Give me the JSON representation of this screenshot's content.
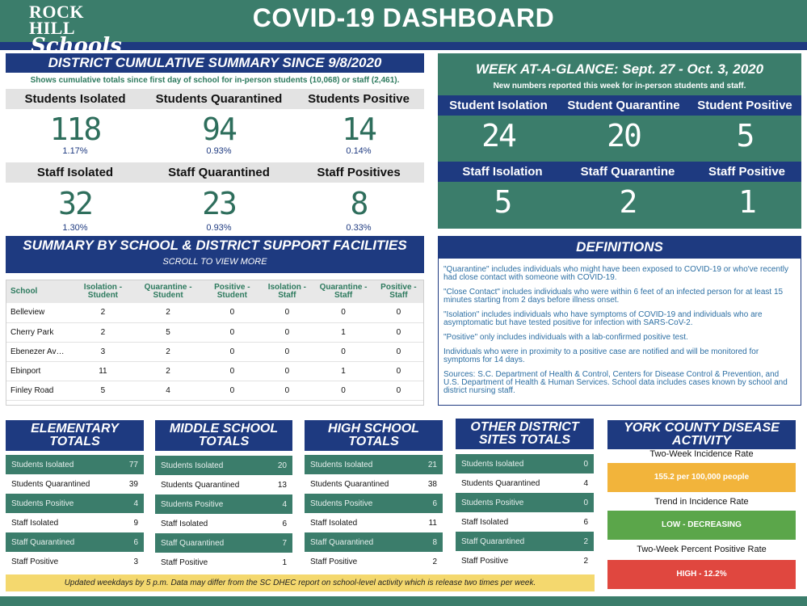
{
  "logo": {
    "line1": "ROCK HILL",
    "line2": "Schools"
  },
  "title": "COVID-19 DASHBOARD",
  "cumulative": {
    "title": "DISTRICT CUMULATIVE SUMMARY SINCE 9/8/2020",
    "subtitle": "Shows cumulative totals since first day of school for in-person students (10,068) or staff (2,461).",
    "students": [
      {
        "label": "Students Isolated",
        "value": "118",
        "pct": "1.17%"
      },
      {
        "label": "Students Quarantined",
        "value": "94",
        "pct": "0.93%"
      },
      {
        "label": "Students Positive",
        "value": "14",
        "pct": "0.14%"
      }
    ],
    "staff": [
      {
        "label": "Staff Isolated",
        "value": "32",
        "pct": "1.30%"
      },
      {
        "label": "Staff Quarantined",
        "value": "23",
        "pct": "0.93%"
      },
      {
        "label": "Staff Positives",
        "value": "8",
        "pct": "0.33%"
      }
    ]
  },
  "week": {
    "title": "WEEK AT-A-GLANCE: Sept. 27 - Oct. 3, 2020",
    "subtitle": "New numbers reported this week for in-person students and staff.",
    "students": [
      {
        "label": "Student Isolation",
        "value": "24"
      },
      {
        "label": "Student Quarantine",
        "value": "20"
      },
      {
        "label": "Student Positive",
        "value": "5"
      }
    ],
    "staff": [
      {
        "label": "Staff Isolation",
        "value": "5"
      },
      {
        "label": "Staff Quarantine",
        "value": "2"
      },
      {
        "label": "Staff Positive",
        "value": "1"
      }
    ]
  },
  "summary": {
    "title": "SUMMARY BY SCHOOL & DISTRICT SUPPORT FACILITIES",
    "subtitle": "SCROLL TO VIEW MORE",
    "headers": [
      "School",
      "Isolation - Student",
      "Quarantine - Student",
      "Positive - Student",
      "Isolation - Staff",
      "Quarantine - Staff",
      "Positive - Staff"
    ],
    "rows": [
      [
        "Belleview",
        "2",
        "2",
        "0",
        "0",
        "0",
        "0"
      ],
      [
        "Cherry Park",
        "2",
        "5",
        "0",
        "0",
        "1",
        "0"
      ],
      [
        "Ebenezer Av…",
        "3",
        "2",
        "0",
        "0",
        "0",
        "0"
      ],
      [
        "Ebinport",
        "11",
        "2",
        "0",
        "0",
        "1",
        "0"
      ],
      [
        "Finley Road",
        "5",
        "4",
        "0",
        "0",
        "0",
        "0"
      ]
    ]
  },
  "definitions": {
    "title": "DEFINITIONS",
    "items": [
      "\"Quarantine\" includes individuals who might have been exposed to COVID-19 or who've recently had close contact with someone with COVID-19.",
      "\"Close Contact\" includes individuals who were within 6 feet of an infected person for at least 15 minutes starting from 2 days before illness onset.",
      "\"Isolation\" includes individuals who have symptoms of COVID-19 and individuals who are asymptomatic but have tested positive for infection with SARS-CoV-2.",
      "\"Positive\" only includes individuals with a lab-confirmed positive test.",
      "Individuals who were in proximity to a positive case are notified and will be monitored for symptoms for 14 days.",
      "Sources: S.C. Department of Health & Control, Centers for Disease Control & Prevention, and U.S. Department of Health & Human Services. School data includes cases known by school and district nursing staff."
    ]
  },
  "totals": [
    {
      "title1": "ELEMENTARY",
      "title2": "TOTALS",
      "rows": [
        {
          "label": "Students Isolated",
          "value": "77"
        },
        {
          "label": "Students Quarantined",
          "value": "39"
        },
        {
          "label": "Students Positive",
          "value": "4"
        },
        {
          "label": "Staff Isolated",
          "value": "9"
        },
        {
          "label": "Staff Quarantined",
          "value": "6"
        },
        {
          "label": "Staff Positive",
          "value": "3"
        }
      ]
    },
    {
      "title1": "MIDDLE SCHOOL",
      "title2": "TOTALS",
      "rows": [
        {
          "label": "Students Isolated",
          "value": "20"
        },
        {
          "label": "Students Quarantined",
          "value": "13"
        },
        {
          "label": "Students Positive",
          "value": "4"
        },
        {
          "label": "Staff Isolated",
          "value": "6"
        },
        {
          "label": "Staff Quarantined",
          "value": "7"
        },
        {
          "label": "Staff Positive",
          "value": "1"
        }
      ]
    },
    {
      "title1": "HIGH SCHOOL",
      "title2": "TOTALS",
      "rows": [
        {
          "label": "Students Isolated",
          "value": "21"
        },
        {
          "label": "Students Quarantined",
          "value": "38"
        },
        {
          "label": "Students Positive",
          "value": "6"
        },
        {
          "label": "Staff Isolated",
          "value": "11"
        },
        {
          "label": "Staff Quarantined",
          "value": "8"
        },
        {
          "label": "Staff Positive",
          "value": "2"
        }
      ]
    },
    {
      "title1": "OTHER DISTRICT",
      "title2": "SITES TOTALS",
      "rows": [
        {
          "label": "Students Isolated",
          "value": "0"
        },
        {
          "label": "Students Quarantined",
          "value": "4"
        },
        {
          "label": "Students Positive",
          "value": "0"
        },
        {
          "label": "Staff Isolated",
          "value": "6"
        },
        {
          "label": "Staff Quarantined",
          "value": "2"
        },
        {
          "label": "Staff Positive",
          "value": "2"
        }
      ]
    }
  ],
  "york": {
    "title1": "YORK COUNTY DISEASE",
    "title2": "ACTIVITY",
    "incidence_label": "Two-Week Incidence Rate",
    "incidence_value": "155.2 per 100,000 people",
    "trend_label": "Trend in Incidence Rate",
    "trend_value": "LOW - DECREASING",
    "positive_label": "Two-Week Percent Positive Rate",
    "positive_value": "HIGH - 12.2%",
    "colors": {
      "incidence": "#f2b43b",
      "trend": "#5ba64a",
      "positive": "#e0473f"
    }
  },
  "note": "Updated weekdays by 5 p.m. Data may differ from the SC DHEC report on school-level activity which is release two times per week.",
  "colors": {
    "green": "#3b7d6b",
    "blue": "#1e3a80",
    "grey": "#e3e3e3"
  }
}
